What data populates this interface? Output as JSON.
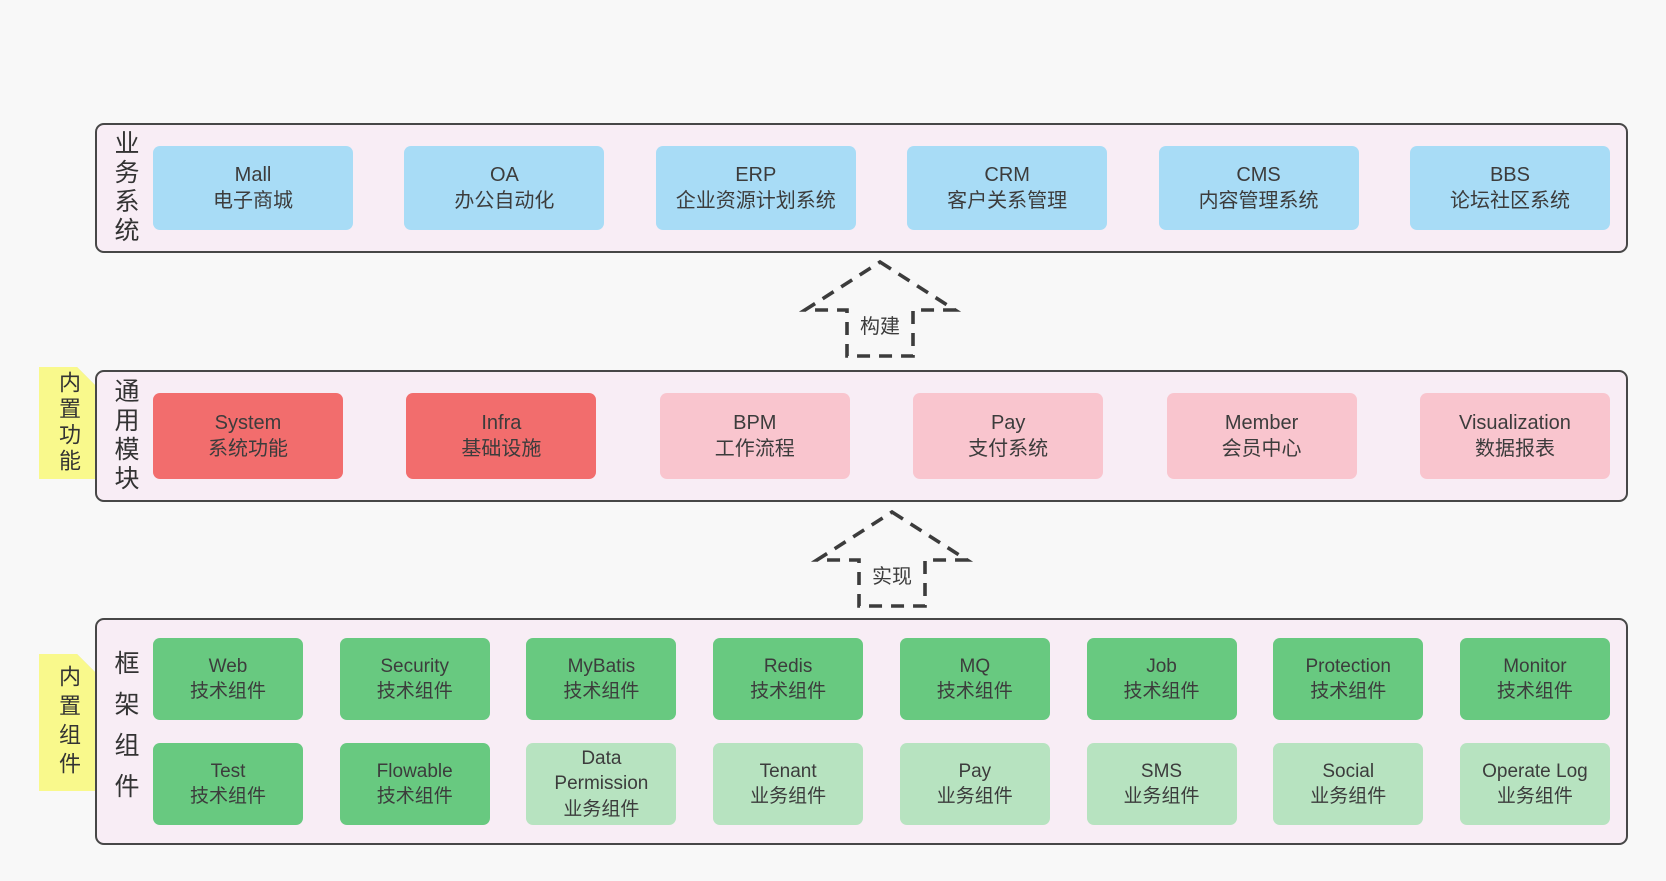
{
  "colors": {
    "page_bg": "#f8f8f8",
    "band_bg": "#f8edf5",
    "band_border": "#474747",
    "blue": "#a8dcf6",
    "red": "#f26d6d",
    "pink": "#f9c5ce",
    "green_dark": "#68c980",
    "green_light": "#b7e3c0",
    "yellow_note": "#f9f98c",
    "fold_gray": "#c7c7c7",
    "text": "#3d3d3d"
  },
  "arrows": [
    {
      "label": "构建"
    },
    {
      "label": "实现"
    }
  ],
  "bands": [
    {
      "label": "业务系统",
      "note": "",
      "rows": [
        [
          {
            "title": "Mall",
            "subtitle": "电子商城",
            "color": "blue"
          },
          {
            "title": "OA",
            "subtitle": "办公自动化",
            "color": "blue"
          },
          {
            "title": "ERP",
            "subtitle": "企业资源计划系统",
            "color": "blue"
          },
          {
            "title": "CRM",
            "subtitle": "客户关系管理",
            "color": "blue"
          },
          {
            "title": "CMS",
            "subtitle": "内容管理系统",
            "color": "blue"
          },
          {
            "title": "BBS",
            "subtitle": "论坛社区系统",
            "color": "blue"
          }
        ]
      ]
    },
    {
      "label": "通用模块",
      "note": "内置功能",
      "rows": [
        [
          {
            "title": "System",
            "subtitle": "系统功能",
            "color": "red"
          },
          {
            "title": "Infra",
            "subtitle": "基础设施",
            "color": "red"
          },
          {
            "title": "BPM",
            "subtitle": "工作流程",
            "color": "pink"
          },
          {
            "title": "Pay",
            "subtitle": "支付系统",
            "color": "pink"
          },
          {
            "title": "Member",
            "subtitle": "会员中心",
            "color": "pink"
          },
          {
            "title": "Visualization",
            "subtitle": "数据报表",
            "color": "pink"
          }
        ]
      ]
    },
    {
      "label": "框架组件",
      "note": "内置组件",
      "rows": [
        [
          {
            "title": "Web",
            "subtitle": "技术组件",
            "color": "green_dark"
          },
          {
            "title": "Security",
            "subtitle": "技术组件",
            "color": "green_dark"
          },
          {
            "title": "MyBatis",
            "subtitle": "技术组件",
            "color": "green_dark"
          },
          {
            "title": "Redis",
            "subtitle": "技术组件",
            "color": "green_dark"
          },
          {
            "title": "MQ",
            "subtitle": "技术组件",
            "color": "green_dark"
          },
          {
            "title": "Job",
            "subtitle": "技术组件",
            "color": "green_dark"
          },
          {
            "title": "Protection",
            "subtitle": "技术组件",
            "color": "green_dark"
          },
          {
            "title": "Monitor",
            "subtitle": "技术组件",
            "color": "green_dark"
          }
        ],
        [
          {
            "title": "Test",
            "subtitle": "技术组件",
            "color": "green_dark"
          },
          {
            "title": "Flowable",
            "subtitle": "技术组件",
            "color": "green_dark"
          },
          {
            "title": "Data Permission",
            "subtitle": "业务组件",
            "color": "green_light"
          },
          {
            "title": "Tenant",
            "subtitle": "业务组件",
            "color": "green_light"
          },
          {
            "title": "Pay",
            "subtitle": "业务组件",
            "color": "green_light"
          },
          {
            "title": "SMS",
            "subtitle": "业务组件",
            "color": "green_light"
          },
          {
            "title": "Social",
            "subtitle": "业务组件",
            "color": "green_light"
          },
          {
            "title": "Operate Log",
            "subtitle": "业务组件",
            "color": "green_light"
          }
        ]
      ]
    }
  ]
}
